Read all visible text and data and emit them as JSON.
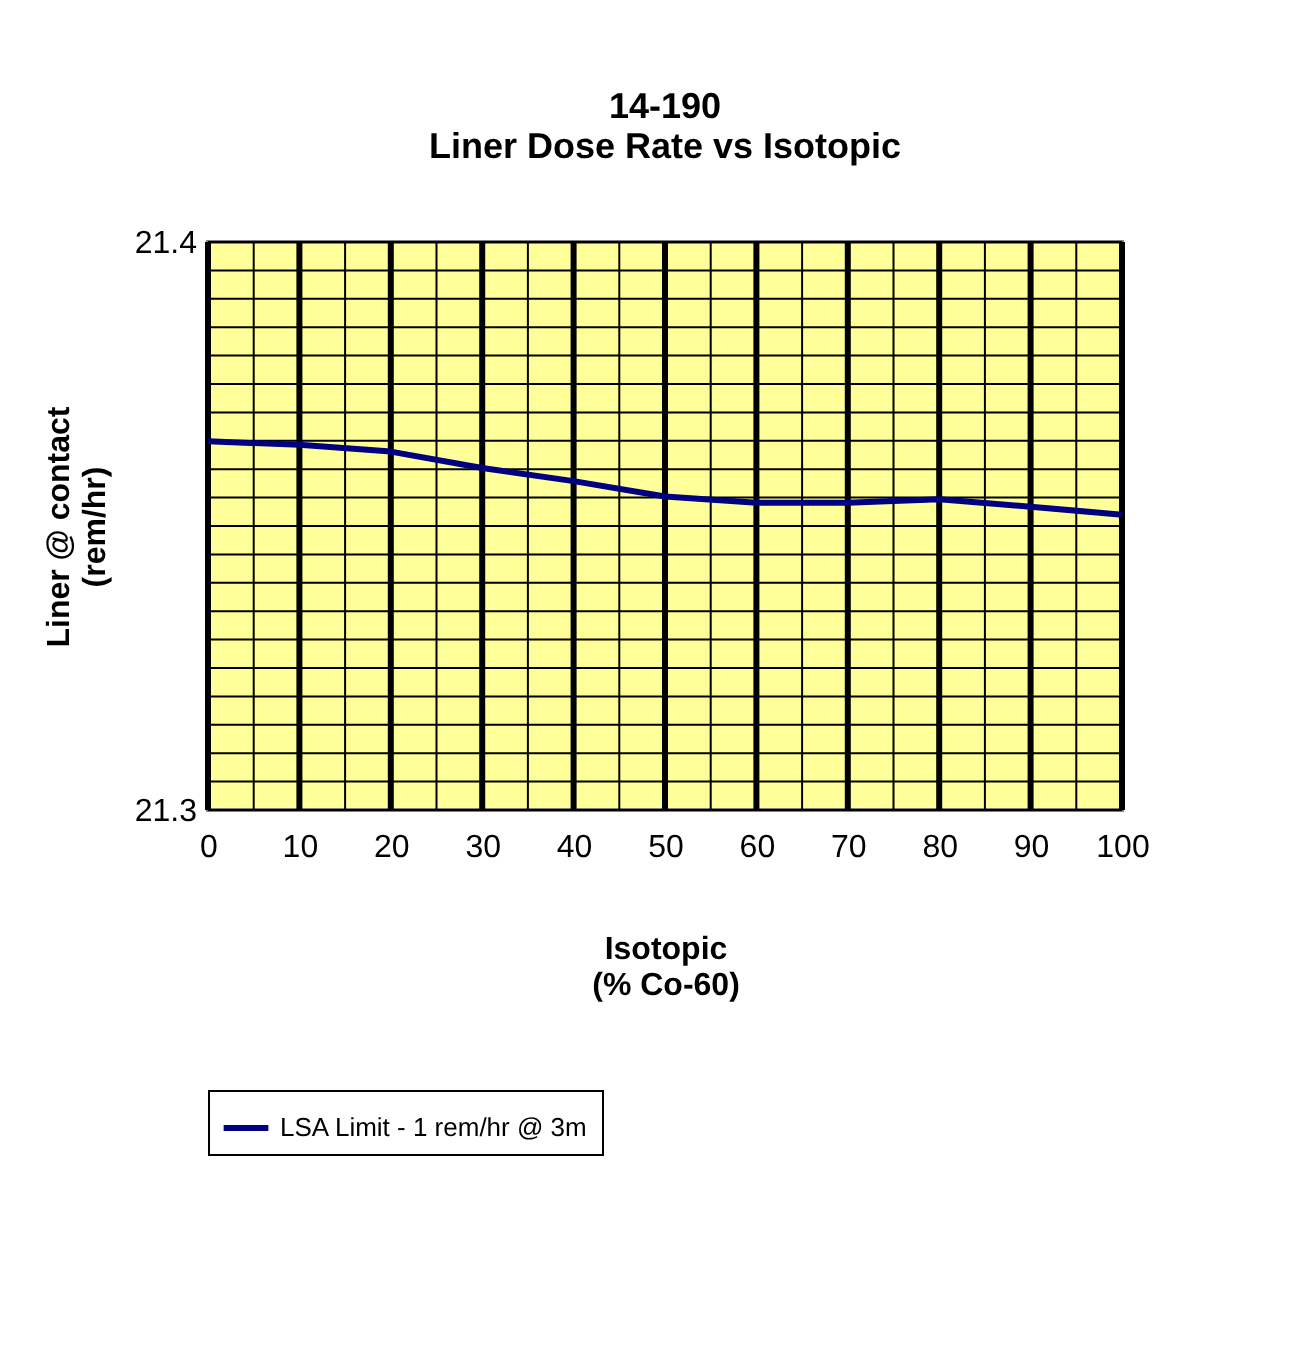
{
  "chart_data": {
    "type": "line",
    "title": "14-190\nLiner Dose Rate vs Isotopic",
    "xlabel": "Isotopic\n(% Co-60)",
    "ylabel": "Liner  @ contact\n(rem/hr)",
    "x": [
      0,
      10,
      20,
      30,
      40,
      50,
      60,
      70,
      80,
      90,
      100
    ],
    "series": [
      {
        "name": "LSA Limit - 1 rem/hr @ 3m",
        "color": "#000080",
        "values": [
          21.3649,
          21.3643,
          21.3631,
          21.3602,
          21.3579,
          21.3552,
          21.3541,
          21.3541,
          21.3547,
          21.3534,
          21.352
        ]
      }
    ],
    "xlim": [
      0,
      100
    ],
    "xticks": [
      0,
      {
        "value": 5,
        "label": null
      },
      10,
      {
        "value": 15,
        "label": null
      },
      20,
      {
        "value": 25,
        "label": null
      },
      30,
      {
        "value": 35,
        "label": null
      },
      40,
      {
        "value": 45,
        "label": null
      },
      50,
      {
        "value": 55,
        "label": null
      },
      60,
      {
        "value": 65,
        "label": null
      },
      70,
      {
        "value": 75,
        "label": null
      },
      80,
      {
        "value": 85,
        "label": null
      },
      90,
      {
        "value": 95,
        "label": null
      },
      100
    ],
    "ylim": [
      21.3,
      21.4
    ],
    "yticks": [
      21.3,
      {
        "value": 21.305,
        "label": null
      },
      {
        "value": 21.31,
        "label": null
      },
      {
        "value": 21.315,
        "label": null
      },
      {
        "value": 21.32,
        "label": null
      },
      {
        "value": 21.325,
        "label": null
      },
      {
        "value": 21.33,
        "label": null
      },
      {
        "value": 21.335,
        "label": null
      },
      {
        "value": 21.34,
        "label": null
      },
      {
        "value": 21.345,
        "label": null
      },
      {
        "value": 21.35,
        "label": null
      },
      {
        "value": 21.355,
        "label": null
      },
      {
        "value": 21.36,
        "label": null
      },
      {
        "value": 21.365,
        "label": null
      },
      {
        "value": 21.37,
        "label": null
      },
      {
        "value": 21.375,
        "label": null
      },
      {
        "value": 21.38,
        "label": null
      },
      {
        "value": 21.385,
        "label": null
      },
      {
        "value": 21.39,
        "label": null
      },
      {
        "value": 21.395,
        "label": null
      },
      21.4
    ],
    "grid": true,
    "legend": "bottom",
    "marker": "none",
    "line_style": "solid"
  }
}
